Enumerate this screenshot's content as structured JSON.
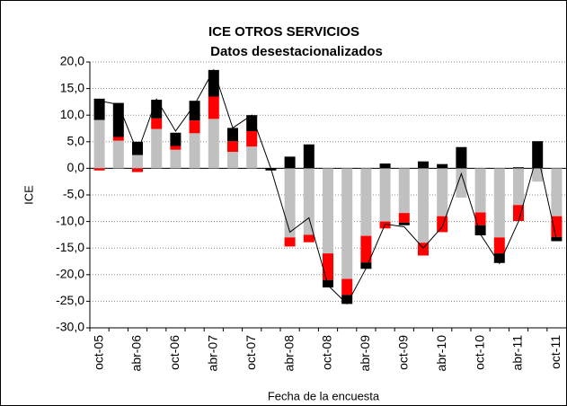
{
  "chart_data": {
    "type": "bar",
    "title": "ICE OTROS SERVICIOS",
    "subtitle": "Datos desestacionalizados",
    "x_label": "Fecha de la encuesta",
    "y_label": "ICE",
    "categories": [
      "oct-05",
      null,
      "abr-06",
      null,
      "oct-06",
      null,
      "abr-07",
      null,
      "oct-07",
      null,
      "abr-08",
      null,
      "oct-08",
      null,
      "abr-09",
      null,
      "oct-09",
      null,
      "abr-10",
      null,
      "oct-10",
      null,
      "abr-11",
      null,
      "oct-11"
    ],
    "series": [
      {
        "color": "#c0c0c0",
        "values": [
          9.1,
          5.2,
          2.5,
          7.4,
          3.5,
          6.6,
          9.3,
          3.1,
          4.1,
          0,
          -13,
          -12.5,
          -16,
          -20.8,
          -12.7,
          -10,
          -8.4,
          -14,
          -9,
          -5.5,
          -8.3,
          -13,
          -6.9,
          -2.5,
          -9
        ]
      },
      {
        "color": "#ff0000",
        "values": [
          -0.4,
          0.7,
          -0.7,
          2,
          0.7,
          2.4,
          4.2,
          2,
          2.9,
          0,
          -1.7,
          -1.4,
          -5,
          -3,
          -5,
          -1.3,
          -1.8,
          -2.4,
          -3,
          0,
          -2.4,
          -3,
          -3,
          0,
          -3.9
        ]
      },
      {
        "color": "#000000",
        "values": [
          4,
          6.4,
          2.5,
          3.5,
          2.5,
          3.7,
          5,
          2.5,
          3,
          -0.4,
          2.2,
          4.5,
          -1.4,
          -1.7,
          -1.2,
          0.9,
          -0.5,
          1.3,
          0.8,
          4,
          -1.9,
          -1.8,
          0.2,
          5.1,
          -0.8
        ]
      },
      {
        "type": "line",
        "color": "#000000",
        "values": [
          12.7,
          12,
          3,
          13,
          7,
          12,
          18.5,
          7.6,
          10,
          0,
          -12,
          -9.3,
          -22,
          -25.5,
          -18.8,
          -10.5,
          -11,
          -15,
          -11,
          -1,
          -12.4,
          -17.9,
          -10,
          2.8,
          -13.5
        ]
      }
    ],
    "ylim": [
      -30,
      20
    ],
    "yticks": [
      {
        "value": -30,
        "label": "-30,0"
      },
      {
        "value": -25,
        "label": "-25,0"
      },
      {
        "value": -20,
        "label": "-20,0"
      },
      {
        "value": -15,
        "label": "-15,0"
      },
      {
        "value": -10,
        "label": "-10,0"
      },
      {
        "value": -5,
        "label": "-5,0"
      },
      {
        "value": 0,
        "label": "0,0"
      },
      {
        "value": 5,
        "label": "5,0"
      },
      {
        "value": 10,
        "label": "10,0"
      },
      {
        "value": 15,
        "label": "15,0"
      },
      {
        "value": 20,
        "label": "20,0"
      }
    ],
    "grid": true
  }
}
